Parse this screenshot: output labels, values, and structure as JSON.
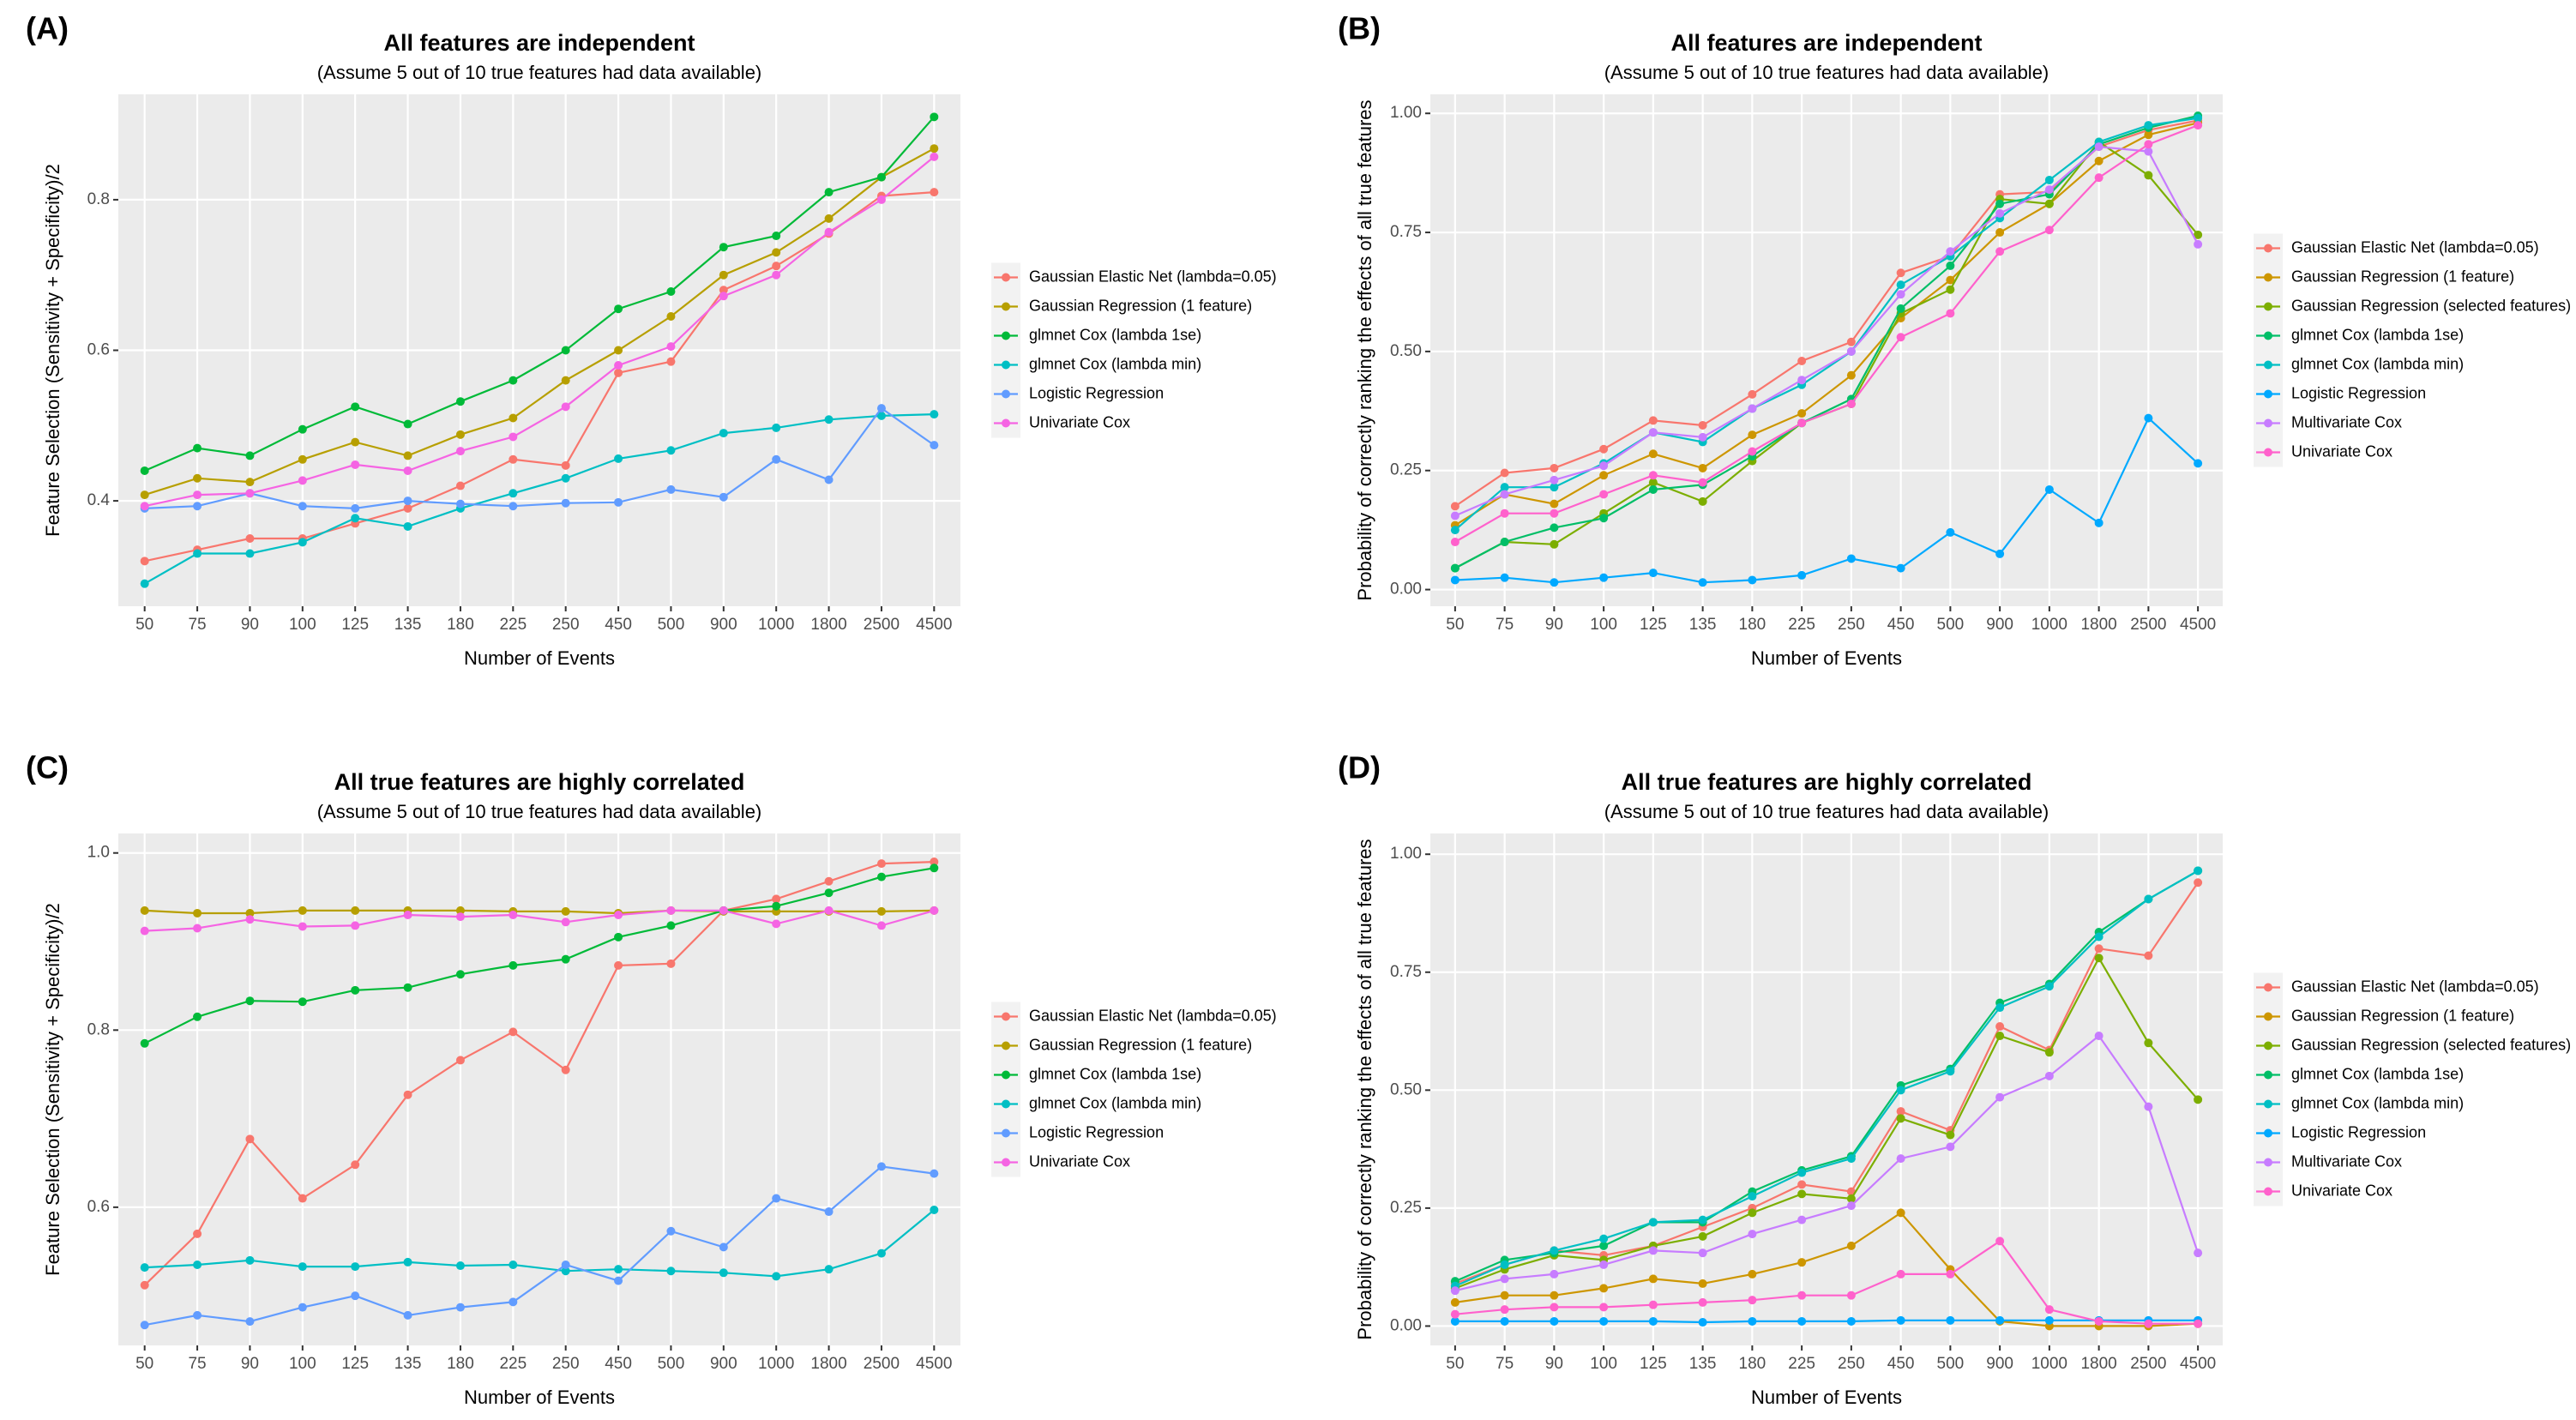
{
  "chart_data": [
    {
      "type": "line",
      "panel_label": "(A)",
      "title": "All features are independent",
      "subtitle": "(Assume 5 out of 10 true features had data available)",
      "x_label": "Number of Events",
      "y_label": "Feature Selection (Sensitivity + Specificity)/2",
      "categories": [
        "50",
        "75",
        "90",
        "100",
        "125",
        "135",
        "180",
        "225",
        "250",
        "450",
        "500",
        "900",
        "1000",
        "1800",
        "2500",
        "4500"
      ],
      "ylim": [
        0.26,
        0.94
      ],
      "yticks": [
        0.4,
        0.6,
        0.8
      ],
      "grid": true,
      "legend": "right",
      "series": [
        {
          "name": "Gaussian Elastic Net (lambda=0.05)",
          "color": "#F8766D",
          "values": [
            0.32,
            0.335,
            0.35,
            0.35,
            0.37,
            0.39,
            0.42,
            0.455,
            0.447,
            0.57,
            0.585,
            0.68,
            0.712,
            0.755,
            0.805,
            0.81
          ]
        },
        {
          "name": "Gaussian Regression (1 feature)",
          "color": "#B79F00",
          "values": [
            0.408,
            0.43,
            0.425,
            0.455,
            0.478,
            0.46,
            0.488,
            0.51,
            0.56,
            0.6,
            0.645,
            0.7,
            0.73,
            0.775,
            0.83,
            0.868
          ]
        },
        {
          "name": "glmnet Cox (lambda 1se)",
          "color": "#00BA38",
          "values": [
            0.44,
            0.47,
            0.46,
            0.495,
            0.525,
            0.502,
            0.532,
            0.56,
            0.6,
            0.655,
            0.678,
            0.737,
            0.752,
            0.81,
            0.83,
            0.91
          ]
        },
        {
          "name": "glmnet Cox (lambda min)",
          "color": "#00BFC4",
          "values": [
            0.29,
            0.33,
            0.33,
            0.345,
            0.377,
            0.366,
            0.39,
            0.41,
            0.43,
            0.456,
            0.467,
            0.49,
            0.497,
            0.508,
            0.513,
            0.515
          ]
        },
        {
          "name": "Logistic Regression",
          "color": "#619CFF",
          "values": [
            0.39,
            0.393,
            0.41,
            0.393,
            0.39,
            0.4,
            0.396,
            0.393,
            0.397,
            0.398,
            0.415,
            0.405,
            0.455,
            0.428,
            0.523,
            0.474
          ]
        },
        {
          "name": "Univariate Cox",
          "color": "#F564E3",
          "values": [
            0.393,
            0.408,
            0.41,
            0.427,
            0.448,
            0.44,
            0.466,
            0.485,
            0.525,
            0.58,
            0.605,
            0.672,
            0.7,
            0.757,
            0.8,
            0.857
          ]
        }
      ]
    },
    {
      "type": "line",
      "panel_label": "(B)",
      "title": "All features are independent",
      "subtitle": "(Assume 5 out of 10 true features had data available)",
      "x_label": "Number of Events",
      "y_label": "Probability of correctly ranking the effects of all true features",
      "categories": [
        "50",
        "75",
        "90",
        "100",
        "125",
        "135",
        "180",
        "225",
        "250",
        "450",
        "500",
        "900",
        "1000",
        "1800",
        "2500",
        "4500"
      ],
      "ylim": [
        -0.035,
        1.04
      ],
      "yticks": [
        {
          "value": 0,
          "label": "0.00"
        },
        {
          "value": 0.25,
          "label": "0.25"
        },
        {
          "value": 0.5,
          "label": "0.50"
        },
        {
          "value": 0.75,
          "label": "0.75"
        },
        {
          "value": 1,
          "label": "1.00"
        }
      ],
      "grid": true,
      "legend": "right",
      "series": [
        {
          "name": "Gaussian Elastic Net (lambda=0.05)",
          "color": "#F8766D",
          "values": [
            0.175,
            0.245,
            0.255,
            0.295,
            0.355,
            0.345,
            0.41,
            0.48,
            0.52,
            0.665,
            0.7,
            0.83,
            0.835,
            0.93,
            0.965,
            0.985
          ]
        },
        {
          "name": "Gaussian Regression (1 feature)",
          "color": "#CD9600",
          "values": [
            0.135,
            0.2,
            0.18,
            0.24,
            0.285,
            0.255,
            0.325,
            0.37,
            0.45,
            0.57,
            0.65,
            0.75,
            0.81,
            0.9,
            0.955,
            0.98
          ]
        },
        {
          "name": "Gaussian Regression (selected features)",
          "color": "#7CAE00",
          "values": [
            0.045,
            0.1,
            0.095,
            0.16,
            0.225,
            0.185,
            0.27,
            0.35,
            0.39,
            0.58,
            0.63,
            0.82,
            0.81,
            0.94,
            0.87,
            0.745
          ]
        },
        {
          "name": "glmnet Cox (lambda 1se)",
          "color": "#00BE67",
          "values": [
            0.045,
            0.1,
            0.13,
            0.15,
            0.21,
            0.22,
            0.28,
            0.35,
            0.4,
            0.59,
            0.68,
            0.81,
            0.83,
            0.935,
            0.97,
            0.995
          ]
        },
        {
          "name": "glmnet Cox (lambda min)",
          "color": "#00BFC4",
          "values": [
            0.125,
            0.215,
            0.215,
            0.265,
            0.33,
            0.31,
            0.38,
            0.43,
            0.5,
            0.64,
            0.7,
            0.78,
            0.86,
            0.94,
            0.975,
            0.99
          ]
        },
        {
          "name": "Logistic Regression",
          "color": "#00A9FF",
          "values": [
            0.02,
            0.025,
            0.015,
            0.025,
            0.035,
            0.015,
            0.02,
            0.03,
            0.065,
            0.045,
            0.12,
            0.075,
            0.21,
            0.14,
            0.36,
            0.265
          ]
        },
        {
          "name": "Multivariate Cox",
          "color": "#C77CFF",
          "values": [
            0.155,
            0.2,
            0.23,
            0.26,
            0.33,
            0.32,
            0.38,
            0.44,
            0.5,
            0.62,
            0.71,
            0.79,
            0.84,
            0.93,
            0.92,
            0.725
          ]
        },
        {
          "name": "Univariate Cox",
          "color": "#FF61CC",
          "values": [
            0.1,
            0.16,
            0.16,
            0.2,
            0.24,
            0.225,
            0.29,
            0.35,
            0.39,
            0.53,
            0.58,
            0.71,
            0.755,
            0.865,
            0.935,
            0.975
          ]
        }
      ]
    },
    {
      "type": "line",
      "panel_label": "(C)",
      "title": "All true features are highly correlated",
      "subtitle": "(Assume 5 out of 10 true features had data available)",
      "x_label": "Number of Events",
      "y_label": "Feature Selection (Sensitivity + Specificity)/2",
      "categories": [
        "50",
        "75",
        "90",
        "100",
        "125",
        "135",
        "180",
        "225",
        "250",
        "450",
        "500",
        "900",
        "1000",
        "1800",
        "2500",
        "4500"
      ],
      "ylim": [
        0.444,
        1.022
      ],
      "yticks": [
        0.6,
        0.8,
        {
          "value": 1,
          "label": "1.0"
        }
      ],
      "grid": true,
      "legend": "right",
      "series": [
        {
          "name": "Gaussian Elastic Net (lambda=0.05)",
          "color": "#F8766D",
          "values": [
            0.512,
            0.57,
            0.677,
            0.61,
            0.648,
            0.727,
            0.766,
            0.798,
            0.755,
            0.873,
            0.875,
            0.935,
            0.948,
            0.968,
            0.988,
            0.99
          ]
        },
        {
          "name": "Gaussian Regression (1 feature)",
          "color": "#B79F00",
          "values": [
            0.935,
            0.932,
            0.932,
            0.935,
            0.935,
            0.935,
            0.935,
            0.934,
            0.934,
            0.932,
            0.935,
            0.934,
            0.934,
            0.934,
            0.934,
            0.935
          ]
        },
        {
          "name": "glmnet Cox (lambda 1se)",
          "color": "#00BA38",
          "values": [
            0.785,
            0.815,
            0.833,
            0.832,
            0.845,
            0.848,
            0.863,
            0.873,
            0.88,
            0.905,
            0.918,
            0.935,
            0.94,
            0.955,
            0.973,
            0.983
          ]
        },
        {
          "name": "glmnet Cox (lambda min)",
          "color": "#00BFC4",
          "values": [
            0.532,
            0.535,
            0.54,
            0.533,
            0.533,
            0.538,
            0.534,
            0.535,
            0.528,
            0.53,
            0.528,
            0.526,
            0.522,
            0.53,
            0.548,
            0.597
          ]
        },
        {
          "name": "Logistic Regression",
          "color": "#619CFF",
          "values": [
            0.467,
            0.478,
            0.471,
            0.487,
            0.5,
            0.478,
            0.487,
            0.493,
            0.535,
            0.517,
            0.573,
            0.555,
            0.61,
            0.595,
            0.646,
            0.638
          ]
        },
        {
          "name": "Univariate Cox",
          "color": "#F564E3",
          "values": [
            0.912,
            0.915,
            0.925,
            0.917,
            0.918,
            0.93,
            0.928,
            0.93,
            0.922,
            0.93,
            0.935,
            0.935,
            0.92,
            0.935,
            0.918,
            0.935
          ]
        }
      ]
    },
    {
      "type": "line",
      "panel_label": "(D)",
      "title": "All true features are highly correlated",
      "subtitle": "(Assume 5 out of 10 true features had data available)",
      "x_label": "Number of Events",
      "y_label": "Probability of correctly ranking the effects of all true features",
      "categories": [
        "50",
        "75",
        "90",
        "100",
        "125",
        "135",
        "180",
        "225",
        "250",
        "450",
        "500",
        "900",
        "1000",
        "1800",
        "2500",
        "4500"
      ],
      "ylim": [
        -0.041,
        1.044
      ],
      "yticks": [
        {
          "value": 0,
          "label": "0.00"
        },
        {
          "value": 0.25,
          "label": "0.25"
        },
        {
          "value": 0.5,
          "label": "0.50"
        },
        {
          "value": 0.75,
          "label": "0.75"
        },
        {
          "value": 1,
          "label": "1.00"
        }
      ],
      "grid": true,
      "legend": "right",
      "series": [
        {
          "name": "Gaussian Elastic Net (lambda=0.05)",
          "color": "#F8766D",
          "values": [
            0.09,
            0.13,
            0.16,
            0.15,
            0.17,
            0.21,
            0.25,
            0.3,
            0.285,
            0.455,
            0.415,
            0.635,
            0.585,
            0.8,
            0.785,
            0.94
          ]
        },
        {
          "name": "Gaussian Regression (1 feature)",
          "color": "#CD9600",
          "values": [
            0.05,
            0.065,
            0.065,
            0.08,
            0.1,
            0.09,
            0.11,
            0.135,
            0.17,
            0.24,
            0.12,
            0.01,
            0,
            0,
            0,
            0.005
          ]
        },
        {
          "name": "Gaussian Regression (selected features)",
          "color": "#7CAE00",
          "values": [
            0.08,
            0.12,
            0.15,
            0.14,
            0.17,
            0.19,
            0.24,
            0.28,
            0.27,
            0.44,
            0.405,
            0.615,
            0.58,
            0.78,
            0.6,
            0.48
          ]
        },
        {
          "name": "glmnet Cox (lambda 1se)",
          "color": "#00BE67",
          "values": [
            0.095,
            0.14,
            0.155,
            0.17,
            0.22,
            0.22,
            0.285,
            0.33,
            0.36,
            0.51,
            0.545,
            0.685,
            0.725,
            0.835,
            0.905,
            0.965
          ]
        },
        {
          "name": "glmnet Cox (lambda min)",
          "color": "#00BFC4",
          "values": [
            0.085,
            0.13,
            0.16,
            0.185,
            0.22,
            0.225,
            0.275,
            0.325,
            0.355,
            0.5,
            0.54,
            0.675,
            0.72,
            0.825,
            0.905,
            0.965
          ]
        },
        {
          "name": "Logistic Regression",
          "color": "#00A9FF",
          "values": [
            0.01,
            0.01,
            0.01,
            0.01,
            0.01,
            0.008,
            0.01,
            0.01,
            0.01,
            0.012,
            0.012,
            0.012,
            0.012,
            0.012,
            0.012,
            0.012
          ]
        },
        {
          "name": "Multivariate Cox",
          "color": "#C77CFF",
          "values": [
            0.075,
            0.1,
            0.11,
            0.13,
            0.16,
            0.155,
            0.195,
            0.225,
            0.255,
            0.355,
            0.38,
            0.485,
            0.53,
            0.615,
            0.465,
            0.155
          ]
        },
        {
          "name": "Univariate Cox",
          "color": "#FF61CC",
          "values": [
            0.025,
            0.035,
            0.04,
            0.04,
            0.045,
            0.05,
            0.055,
            0.065,
            0.065,
            0.11,
            0.11,
            0.18,
            0.035,
            0.01,
            0.005,
            0.005
          ]
        }
      ]
    }
  ]
}
